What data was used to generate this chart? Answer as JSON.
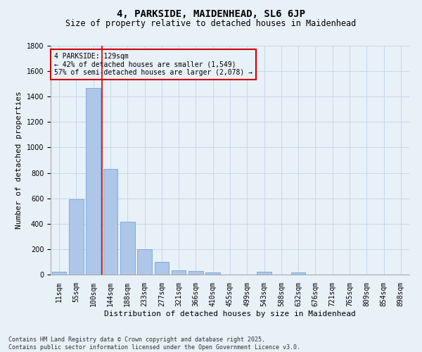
{
  "title": "4, PARKSIDE, MAIDENHEAD, SL6 6JP",
  "subtitle": "Size of property relative to detached houses in Maidenhead",
  "xlabel": "Distribution of detached houses by size in Maidenhead",
  "ylabel": "Number of detached properties",
  "categories": [
    "11sqm",
    "55sqm",
    "100sqm",
    "144sqm",
    "188sqm",
    "233sqm",
    "277sqm",
    "321sqm",
    "366sqm",
    "410sqm",
    "455sqm",
    "499sqm",
    "543sqm",
    "588sqm",
    "632sqm",
    "676sqm",
    "721sqm",
    "765sqm",
    "809sqm",
    "854sqm",
    "898sqm"
  ],
  "values": [
    20,
    590,
    1470,
    830,
    415,
    200,
    100,
    35,
    25,
    15,
    0,
    0,
    20,
    0,
    15,
    0,
    0,
    0,
    0,
    0,
    0
  ],
  "bar_color": "#aec6e8",
  "bar_edge_color": "#5a9fd4",
  "grid_color": "#c8d8e8",
  "bg_color": "#e8f0f8",
  "vline_x": 2.5,
  "vline_color": "#cc0000",
  "annotation_text": "4 PARKSIDE: 129sqm\n← 42% of detached houses are smaller (1,549)\n57% of semi-detached houses are larger (2,078) →",
  "annotation_box_color": "#cc0000",
  "annotation_fontsize": 7,
  "ylim": [
    0,
    1800
  ],
  "yticks": [
    0,
    200,
    400,
    600,
    800,
    1000,
    1200,
    1400,
    1600,
    1800
  ],
  "footer": "Contains HM Land Registry data © Crown copyright and database right 2025.\nContains public sector information licensed under the Open Government Licence v3.0.",
  "title_fontsize": 10,
  "subtitle_fontsize": 8.5,
  "xlabel_fontsize": 8,
  "ylabel_fontsize": 8,
  "tick_fontsize": 7
}
